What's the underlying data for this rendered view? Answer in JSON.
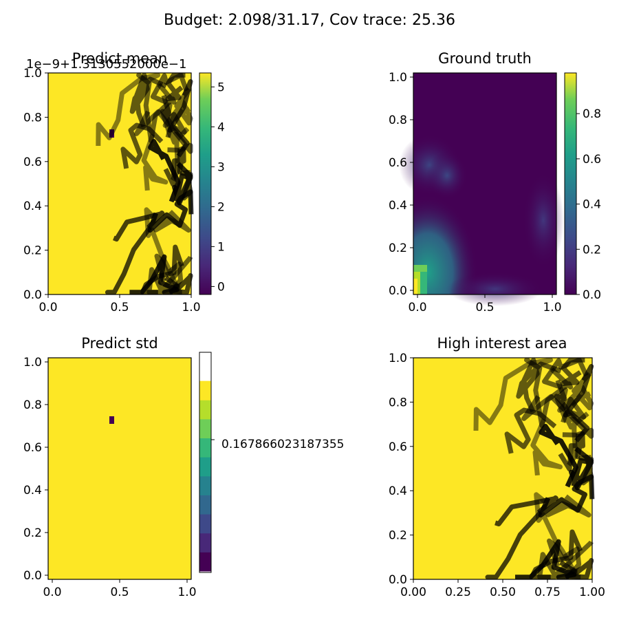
{
  "figure": {
    "suptitle": "Budget: 2.098/31.17,  Cov trace: 25.36"
  },
  "chart_data": [
    {
      "type": "heatmap",
      "title": "Predict mean",
      "offset_label": "1e−9+1.3130552000e−1",
      "xlim": [
        0.0,
        1.0
      ],
      "ylim": [
        0.0,
        1.0
      ],
      "xticks": [
        "0.0",
        "0.5",
        "1.0"
      ],
      "yticks": [
        "0.0",
        "0.2",
        "0.4",
        "0.6",
        "0.8",
        "1.0"
      ],
      "colorbar": {
        "ticks": [
          "0",
          "1",
          "2",
          "3",
          "4",
          "5"
        ],
        "range": [
          -0.2,
          5.35
        ],
        "colormap": "viridis"
      },
      "field": "uniform yellow with a single dark cell near (0.45, 0.73)",
      "marker_cell": {
        "x": 0.45,
        "y": 0.73,
        "color": "#440154"
      },
      "has_path": true
    },
    {
      "type": "heatmap",
      "title": "Ground truth",
      "xlim": [
        0.0,
        1.0
      ],
      "ylim": [
        0.0,
        1.0
      ],
      "xticks": [
        "0.0",
        "0.5",
        "1.0"
      ],
      "yticks": [
        "0.0",
        "0.2",
        "0.4",
        "0.6",
        "0.8",
        "1.0"
      ],
      "colorbar": {
        "ticks": [
          "0.0",
          "0.2",
          "0.4",
          "0.6",
          "0.8"
        ],
        "range": [
          0.0,
          0.98
        ],
        "colormap": "viridis"
      },
      "field": "mostly dark purple; teal-green blob at lower-left reaching yellow near origin; faint purple bands at left-middle and right-middle",
      "has_path": false
    },
    {
      "type": "heatmap",
      "title": "Predict std",
      "xlim": [
        0.0,
        1.0
      ],
      "ylim": [
        0.0,
        1.0
      ],
      "xticks": [
        "0.0",
        "0.5",
        "1.0"
      ],
      "yticks": [
        "0.0",
        "0.2",
        "0.4",
        "0.6",
        "0.8",
        "1.0"
      ],
      "colorbar": {
        "ticks": [
          "0.167866023187355"
        ],
        "colormap": "viridis (discrete)"
      },
      "field": "uniform yellow with a single dark cell near (0.45, 0.73)",
      "marker_cell": {
        "x": 0.45,
        "y": 0.73,
        "color": "#440154"
      },
      "has_path": false
    },
    {
      "type": "heatmap",
      "title": "High interest area",
      "xlim": [
        0.0,
        1.0
      ],
      "ylim": [
        0.0,
        1.0
      ],
      "xticks": [
        "0.00",
        "0.25",
        "0.50",
        "0.75",
        "1.00"
      ],
      "yticks": [
        "0.0",
        "0.2",
        "0.4",
        "0.6",
        "0.8",
        "1.0"
      ],
      "field": "uniform yellow",
      "has_path": true
    }
  ],
  "colors": {
    "viridis_yellow": "#fde725",
    "viridis_dark": "#440154",
    "path": "#000000"
  }
}
